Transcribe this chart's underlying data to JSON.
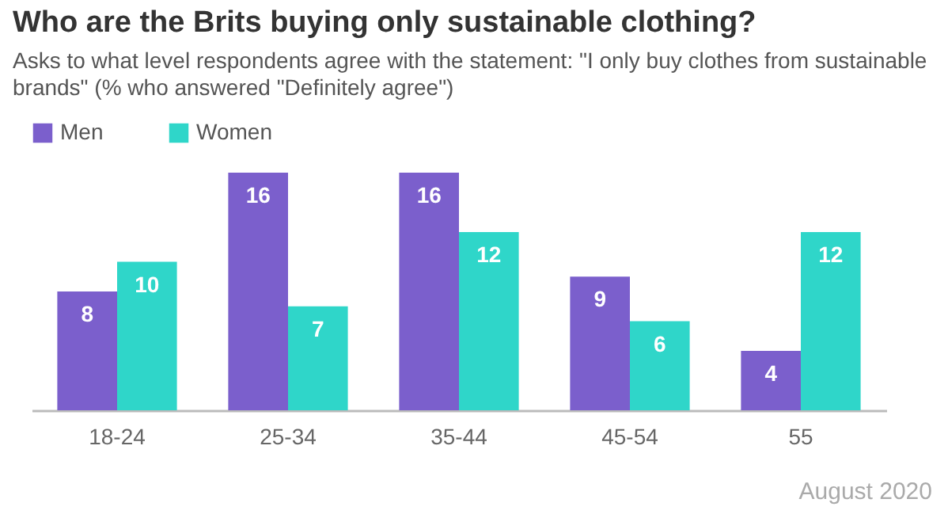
{
  "chart_data": {
    "type": "bar",
    "title": "Who are the Brits buying only sustainable clothing?",
    "subtitle": "Asks to what level respondents agree with the statement: \"I only buy clothes from sustainable brands\" (% who answered \"Definitely agree\")",
    "categories": [
      "18-24",
      "25-34",
      "35-44",
      "45-54",
      "55"
    ],
    "series": [
      {
        "name": "Men",
        "color": "#7b5fcc",
        "values": [
          8,
          16,
          16,
          9,
          4
        ]
      },
      {
        "name": "Women",
        "color": "#2fd6c9",
        "values": [
          10,
          7,
          12,
          6,
          12
        ]
      }
    ],
    "data_labels": true,
    "legend": "top",
    "tick_labels": "x",
    "grid": false,
    "annotations": [
      "August 2020"
    ]
  }
}
